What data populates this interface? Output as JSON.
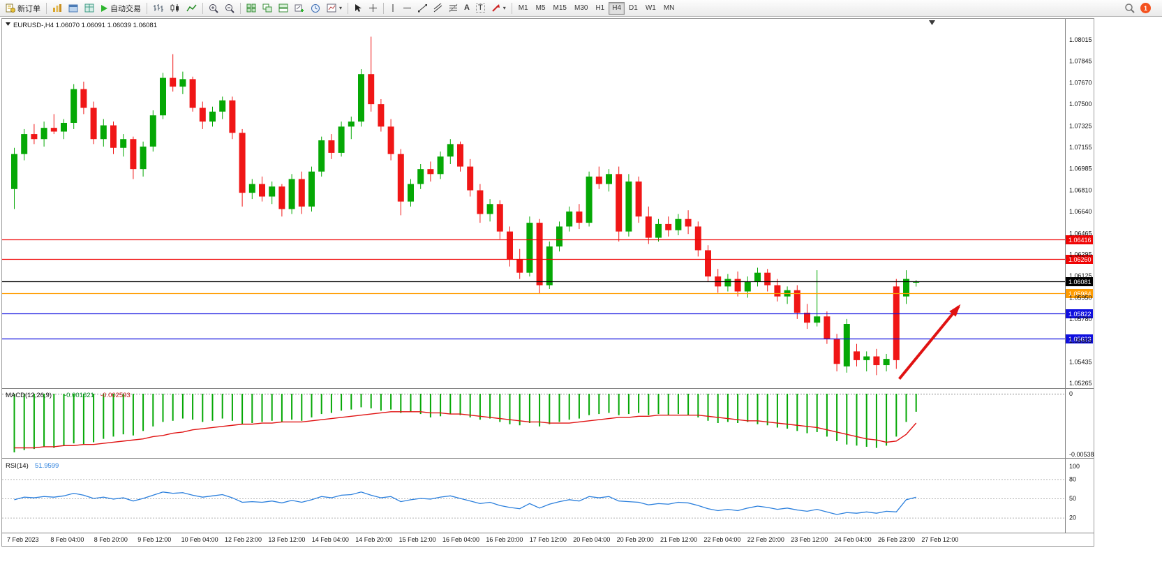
{
  "toolbar": {
    "new_order_label": "新订单",
    "autotrade_label": "自动交易",
    "text_tool_glyph": "A",
    "label_tool_glyph": "T",
    "dropdown_glyph": "▾",
    "timeframes": [
      "M1",
      "M5",
      "M15",
      "M30",
      "H1",
      "H4",
      "D1",
      "W1",
      "MN"
    ],
    "active_timeframe": "H4",
    "notification_count": "1"
  },
  "chart_data": {
    "type": "candlestick",
    "symbol": "EURUSD-",
    "timeframe": "H4",
    "header_line": "EURUSD-,H4 1.06070 1.06091 1.06039 1.06081",
    "current_ohlc": {
      "open": 1.0607,
      "high": 1.06091,
      "low": 1.06039,
      "close": 1.06081
    },
    "colors": {
      "up": "#05a805",
      "down": "#f01616",
      "rsi_line": "#2a7fdd",
      "macd_signal": "#e01212",
      "arrow": "#e01212"
    },
    "price_scale": {
      "top": 1.08015,
      "bottom": 1.05265,
      "ticks": [
        "1.08015",
        "1.07845",
        "1.07670",
        "1.07500",
        "1.07325",
        "1.07155",
        "1.06985",
        "1.06810",
        "1.06640",
        "1.06465",
        "1.06295",
        "1.06125",
        "1.05950",
        "1.05780",
        "1.05605",
        "1.05435",
        "1.05265"
      ]
    },
    "candles": [
      [
        1.0682,
        1.0715,
        1.0666,
        1.071
      ],
      [
        1.071,
        1.073,
        1.0705,
        1.0726
      ],
      [
        1.0726,
        1.0734,
        1.0718,
        1.0722
      ],
      [
        1.0722,
        1.0736,
        1.0716,
        1.0731
      ],
      [
        1.0731,
        1.0742,
        1.0726,
        1.0728
      ],
      [
        1.0728,
        1.0738,
        1.0722,
        1.0735
      ],
      [
        1.0735,
        1.0766,
        1.073,
        1.0762
      ],
      [
        1.0762,
        1.0768,
        1.0742,
        1.0747
      ],
      [
        1.0747,
        1.0752,
        1.0718,
        1.0722
      ],
      [
        1.0722,
        1.0738,
        1.0716,
        1.0733
      ],
      [
        1.0733,
        1.0736,
        1.071,
        1.0715
      ],
      [
        1.0715,
        1.0726,
        1.0708,
        1.0722
      ],
      [
        1.0722,
        1.0724,
        1.069,
        1.0698
      ],
      [
        1.0698,
        1.072,
        1.0692,
        1.0716
      ],
      [
        1.0716,
        1.0745,
        1.0712,
        1.0741
      ],
      [
        1.0741,
        1.0775,
        1.0738,
        1.0771
      ],
      [
        1.0771,
        1.079,
        1.076,
        1.0764
      ],
      [
        1.0764,
        1.0776,
        1.0758,
        1.077
      ],
      [
        1.077,
        1.0772,
        1.0744,
        1.0747
      ],
      [
        1.0747,
        1.0752,
        1.073,
        1.0736
      ],
      [
        1.0736,
        1.0748,
        1.0732,
        1.0744
      ],
      [
        1.0744,
        1.0756,
        1.0738,
        1.0753
      ],
      [
        1.0753,
        1.0756,
        1.0722,
        1.0727
      ],
      [
        1.0727,
        1.073,
        1.0668,
        1.0679
      ],
      [
        1.0679,
        1.069,
        1.0674,
        1.0686
      ],
      [
        1.0686,
        1.0692,
        1.0672,
        1.0676
      ],
      [
        1.0676,
        1.0688,
        1.067,
        1.0684
      ],
      [
        1.0684,
        1.0686,
        1.066,
        1.0666
      ],
      [
        1.0666,
        1.0694,
        1.0662,
        1.069
      ],
      [
        1.069,
        1.0696,
        1.0662,
        1.0668
      ],
      [
        1.0668,
        1.07,
        1.0664,
        1.0696
      ],
      [
        1.0696,
        1.0724,
        1.0692,
        1.0721
      ],
      [
        1.0721,
        1.0726,
        1.0706,
        1.0711
      ],
      [
        1.0711,
        1.0736,
        1.0708,
        1.0732
      ],
      [
        1.0732,
        1.074,
        1.0722,
        1.0736
      ],
      [
        1.0736,
        1.0778,
        1.0732,
        1.0774
      ],
      [
        1.0774,
        1.0804,
        1.0744,
        1.075
      ],
      [
        1.075,
        1.0754,
        1.0728,
        1.0732
      ],
      [
        1.0732,
        1.0738,
        1.0705,
        1.071
      ],
      [
        1.071,
        1.0714,
        1.0661,
        1.0672
      ],
      [
        1.0672,
        1.069,
        1.0668,
        1.0686
      ],
      [
        1.0686,
        1.0702,
        1.0682,
        1.0698
      ],
      [
        1.0698,
        1.0704,
        1.0688,
        1.0694
      ],
      [
        1.0694,
        1.0712,
        1.069,
        1.0708
      ],
      [
        1.0708,
        1.0722,
        1.0702,
        1.0718
      ],
      [
        1.0718,
        1.072,
        1.0696,
        1.07
      ],
      [
        1.07,
        1.0706,
        1.0676,
        1.0681
      ],
      [
        1.0681,
        1.0686,
        1.0655,
        1.0662
      ],
      [
        1.0662,
        1.0674,
        1.0656,
        1.067
      ],
      [
        1.067,
        1.0673,
        1.0642,
        1.0648
      ],
      [
        1.0648,
        1.0652,
        1.062,
        1.0626
      ],
      [
        1.0626,
        1.0634,
        1.061,
        1.0615
      ],
      [
        1.0615,
        1.066,
        1.0612,
        1.0655
      ],
      [
        1.0655,
        1.0658,
        1.0598,
        1.0605
      ],
      [
        1.0605,
        1.064,
        1.0602,
        1.0636
      ],
      [
        1.0636,
        1.0656,
        1.0632,
        1.0652
      ],
      [
        1.0652,
        1.0668,
        1.0648,
        1.0664
      ],
      [
        1.0664,
        1.067,
        1.065,
        1.0655
      ],
      [
        1.0655,
        1.0696,
        1.0652,
        1.0692
      ],
      [
        1.0692,
        1.07,
        1.0682,
        1.0686
      ],
      [
        1.0686,
        1.0698,
        1.068,
        1.0694
      ],
      [
        1.0694,
        1.07,
        1.064,
        1.0648
      ],
      [
        1.0648,
        1.0694,
        1.0644,
        1.0688
      ],
      [
        1.0688,
        1.0692,
        1.0655,
        1.066
      ],
      [
        1.066,
        1.0668,
        1.0638,
        1.0643
      ],
      [
        1.0643,
        1.0658,
        1.064,
        1.0654
      ],
      [
        1.0654,
        1.066,
        1.0644,
        1.0649
      ],
      [
        1.0649,
        1.0662,
        1.0645,
        1.0658
      ],
      [
        1.0658,
        1.0665,
        1.0646,
        1.0652
      ],
      [
        1.0652,
        1.0656,
        1.0628,
        1.0633
      ],
      [
        1.0633,
        1.0637,
        1.0608,
        1.0612
      ],
      [
        1.0612,
        1.0618,
        1.0599,
        1.0604
      ],
      [
        1.0604,
        1.0614,
        1.06,
        1.061
      ],
      [
        1.061,
        1.0616,
        1.0596,
        1.06
      ],
      [
        1.06,
        1.0612,
        1.0595,
        1.0608
      ],
      [
        1.0608,
        1.0619,
        1.0604,
        1.0615
      ],
      [
        1.0615,
        1.0618,
        1.06,
        1.0605
      ],
      [
        1.0605,
        1.061,
        1.0592,
        1.0596
      ],
      [
        1.0596,
        1.0604,
        1.059,
        1.0601
      ],
      [
        1.0601,
        1.0605,
        1.0578,
        1.0583
      ],
      [
        1.0583,
        1.059,
        1.057,
        1.0575
      ],
      [
        1.0575,
        1.0617,
        1.0572,
        1.058
      ],
      [
        1.058,
        1.0584,
        1.0558,
        1.0562
      ],
      [
        1.0562,
        1.0566,
        1.0536,
        1.0542
      ],
      [
        1.054,
        1.0578,
        1.0535,
        1.0574
      ],
      [
        1.0552,
        1.0558,
        1.054,
        1.0545
      ],
      [
        1.0545,
        1.0552,
        1.0536,
        1.0548
      ],
      [
        1.0548,
        1.0554,
        1.0533,
        1.0541
      ],
      [
        1.0541,
        1.055,
        1.0536,
        1.0546
      ],
      [
        1.0604,
        1.061,
        1.0538,
        1.0545
      ],
      [
        1.0596,
        1.0617,
        1.059,
        1.061
      ],
      [
        1.0607,
        1.06091,
        1.06039,
        1.06081
      ]
    ],
    "hlines": [
      {
        "price": 1.06416,
        "label": "1.06416",
        "color": "#f00404"
      },
      {
        "price": 1.0626,
        "label": "1.06260",
        "color": "#f00404"
      },
      {
        "price": 1.06081,
        "label": "1.06081",
        "color": "#000000"
      },
      {
        "price": 1.05984,
        "label": "1.05984",
        "color": "#ff9c00"
      },
      {
        "price": 1.05822,
        "label": "1.05822",
        "color": "#1010e0"
      },
      {
        "price": 1.05623,
        "label": "1.05623",
        "color": "#1010e0"
      }
    ],
    "arrow": {
      "from": {
        "index": 89.3,
        "price": 1.053
      },
      "to": {
        "index": 95.3,
        "price": 1.0588
      }
    },
    "indicators": {
      "macd": {
        "label": "MACD(12,26,9)",
        "value_label": "-0.001621",
        "signal_label": "-0.002593",
        "axis_zero_label": "0",
        "axis_min_label": "-0.005384",
        "axis_min": -0.005384,
        "histogram": [
          -0.0052,
          -0.005,
          -0.0049,
          -0.0047,
          -0.0048,
          -0.0046,
          -0.0044,
          -0.0045,
          -0.0043,
          -0.004,
          -0.0038,
          -0.0036,
          -0.0037,
          -0.0033,
          -0.0029,
          -0.0025,
          -0.0024,
          -0.0022,
          -0.0023,
          -0.0025,
          -0.0024,
          -0.0022,
          -0.0024,
          -0.0027,
          -0.0026,
          -0.0025,
          -0.0024,
          -0.0025,
          -0.0023,
          -0.0024,
          -0.0021,
          -0.0018,
          -0.0017,
          -0.0015,
          -0.0014,
          -0.0012,
          -0.0013,
          -0.0015,
          -0.0014,
          -0.0017,
          -0.0016,
          -0.0018,
          -0.0021,
          -0.002,
          -0.0018,
          -0.0019,
          -0.0021,
          -0.0023,
          -0.0022,
          -0.0025,
          -0.0027,
          -0.0028,
          -0.0026,
          -0.0029,
          -0.0027,
          -0.0025,
          -0.0023,
          -0.0022,
          -0.0019,
          -0.0018,
          -0.0017,
          -0.0019,
          -0.0018,
          -0.0017,
          -0.0019,
          -0.0018,
          -0.0019,
          -0.0018,
          -0.0019,
          -0.0021,
          -0.0024,
          -0.0026,
          -0.0025,
          -0.0026,
          -0.0025,
          -0.0027,
          -0.0028,
          -0.003,
          -0.0031,
          -0.0033,
          -0.0035,
          -0.0034,
          -0.0038,
          -0.0042,
          -0.0045,
          -0.0046,
          -0.0047,
          -0.0048,
          -0.0046,
          -0.0038,
          -0.0025,
          -0.0016
        ],
        "signal": [
          -0.0048,
          -0.0048,
          -0.0048,
          -0.0047,
          -0.0047,
          -0.0046,
          -0.0046,
          -0.0045,
          -0.0045,
          -0.0044,
          -0.0043,
          -0.0042,
          -0.0041,
          -0.004,
          -0.0038,
          -0.0037,
          -0.0035,
          -0.0034,
          -0.0032,
          -0.0031,
          -0.003,
          -0.0029,
          -0.0028,
          -0.0027,
          -0.0027,
          -0.0026,
          -0.0026,
          -0.0025,
          -0.0025,
          -0.0025,
          -0.0024,
          -0.0023,
          -0.0022,
          -0.0021,
          -0.002,
          -0.0019,
          -0.0018,
          -0.0017,
          -0.0016,
          -0.0016,
          -0.0016,
          -0.0016,
          -0.0017,
          -0.0017,
          -0.0018,
          -0.0018,
          -0.0019,
          -0.002,
          -0.0021,
          -0.0022,
          -0.0023,
          -0.0024,
          -0.0025,
          -0.0025,
          -0.0026,
          -0.0026,
          -0.0026,
          -0.0025,
          -0.0024,
          -0.0023,
          -0.0022,
          -0.0021,
          -0.0021,
          -0.002,
          -0.002,
          -0.0019,
          -0.0019,
          -0.0019,
          -0.0019,
          -0.0019,
          -0.002,
          -0.0021,
          -0.0022,
          -0.0023,
          -0.0024,
          -0.0024,
          -0.0025,
          -0.0026,
          -0.0027,
          -0.0028,
          -0.0029,
          -0.003,
          -0.0032,
          -0.0034,
          -0.0036,
          -0.0038,
          -0.004,
          -0.0041,
          -0.0043,
          -0.0042,
          -0.0036,
          -0.0026
        ]
      },
      "rsi": {
        "label": "RSI(14)",
        "value_label": "51.9599",
        "axis_ticks": [
          100,
          80,
          50,
          20
        ],
        "levels": [
          80,
          50,
          20
        ],
        "values": [
          48,
          52,
          51,
          53,
          52,
          54,
          58,
          55,
          50,
          52,
          49,
          51,
          46,
          50,
          55,
          60,
          58,
          59,
          55,
          52,
          54,
          56,
          51,
          44,
          45,
          44,
          46,
          43,
          47,
          44,
          48,
          53,
          51,
          55,
          56,
          60,
          55,
          51,
          53,
          45,
          48,
          50,
          49,
          52,
          54,
          50,
          46,
          42,
          44,
          39,
          36,
          34,
          42,
          35,
          41,
          45,
          48,
          46,
          53,
          51,
          53,
          46,
          45,
          44,
          40,
          42,
          41,
          44,
          43,
          39,
          34,
          31,
          33,
          31,
          35,
          38,
          36,
          33,
          35,
          32,
          30,
          33,
          29,
          25,
          28,
          27,
          29,
          27,
          30,
          29,
          48,
          51.96
        ]
      }
    },
    "time_axis": [
      "7 Feb 2023",
      "8 Feb 04:00",
      "8 Feb 20:00",
      "9 Feb 12:00",
      "10 Feb 04:00",
      "12 Feb 23:00",
      "13 Feb 12:00",
      "14 Feb 04:00",
      "14 Feb 20:00",
      "15 Feb 12:00",
      "16 Feb 04:00",
      "16 Feb 20:00",
      "17 Feb 12:00",
      "20 Feb 04:00",
      "20 Feb 20:00",
      "21 Feb 12:00",
      "22 Feb 04:00",
      "22 Feb 20:00",
      "23 Feb 12:00",
      "24 Feb 04:00",
      "26 Feb 23:00",
      "27 Feb 12:00"
    ]
  }
}
